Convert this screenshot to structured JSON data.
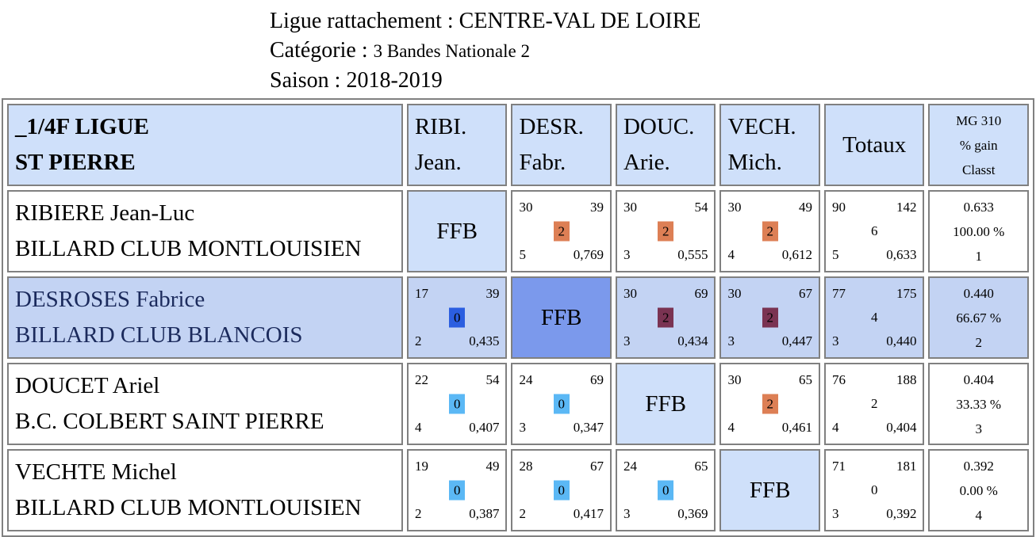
{
  "header": {
    "ligue_label": "Ligue rattachement : ",
    "ligue_value": "CENTRE-VAL DE LOIRE",
    "categorie_label": "Catégorie : ",
    "categorie_value": "3 Bandes Nationale 2",
    "saison_label": "Saison : ",
    "saison_value": "2018-2019"
  },
  "table": {
    "title_line1": "_1/4F LIGUE",
    "title_line2": "ST PIERRE",
    "columns": [
      {
        "line1": "RIBI.",
        "line2": "Jean."
      },
      {
        "line1": "DESR.",
        "line2": "Fabr."
      },
      {
        "line1": "DOUC.",
        "line2": "Arie."
      },
      {
        "line1": "VECH.",
        "line2": "Mich."
      }
    ],
    "totaux_label": "Totaux",
    "mg_label_line1": "MG 310",
    "mg_label_line2": "% gain",
    "mg_label_line3": "Classt",
    "ffb_label": "FFB",
    "colors": {
      "win": "#dd7f55",
      "win_highlight": "#7a3352",
      "loss": "#5bb8f5",
      "loss_highlight": "#2b5ee0",
      "header_bg": "#cfe0fa",
      "highlight_row_bg": "#c3d3f3",
      "highlight_ffb_bg": "#7b99ec"
    },
    "rows": [
      {
        "name": "RIBIERE Jean-Luc",
        "club": "BILLARD CLUB MONTLOUISIEN",
        "highlight": false,
        "cells": [
          null,
          {
            "pts": "30",
            "max": "39",
            "res": "2",
            "rep": "5",
            "moy": "0,769"
          },
          {
            "pts": "30",
            "max": "54",
            "res": "2",
            "rep": "3",
            "moy": "0,555"
          },
          {
            "pts": "30",
            "max": "49",
            "res": "2",
            "rep": "4",
            "moy": "0,612"
          }
        ],
        "totals": {
          "pts": "90",
          "max": "142",
          "res": "6",
          "rep": "5",
          "moy": "0,633"
        },
        "mg": {
          "mg": "0.633",
          "pct": "100.00 %",
          "rank": "1"
        }
      },
      {
        "name": "DESROSES Fabrice",
        "club": "BILLARD CLUB BLANCOIS",
        "highlight": true,
        "cells": [
          {
            "pts": "17",
            "max": "39",
            "res": "0",
            "rep": "2",
            "moy": "0,435"
          },
          null,
          {
            "pts": "30",
            "max": "69",
            "res": "2",
            "rep": "3",
            "moy": "0,434"
          },
          {
            "pts": "30",
            "max": "67",
            "res": "2",
            "rep": "3",
            "moy": "0,447"
          }
        ],
        "totals": {
          "pts": "77",
          "max": "175",
          "res": "4",
          "rep": "3",
          "moy": "0,440"
        },
        "mg": {
          "mg": "0.440",
          "pct": "66.67 %",
          "rank": "2"
        }
      },
      {
        "name": "DOUCET Ariel",
        "club": "B.C. COLBERT SAINT PIERRE",
        "highlight": false,
        "cells": [
          {
            "pts": "22",
            "max": "54",
            "res": "0",
            "rep": "4",
            "moy": "0,407"
          },
          {
            "pts": "24",
            "max": "69",
            "res": "0",
            "rep": "3",
            "moy": "0,347"
          },
          null,
          {
            "pts": "30",
            "max": "65",
            "res": "2",
            "rep": "4",
            "moy": "0,461"
          }
        ],
        "totals": {
          "pts": "76",
          "max": "188",
          "res": "2",
          "rep": "4",
          "moy": "0,404"
        },
        "mg": {
          "mg": "0.404",
          "pct": "33.33 %",
          "rank": "3"
        }
      },
      {
        "name": "VECHTE Michel",
        "club": "BILLARD CLUB MONTLOUISIEN",
        "highlight": false,
        "cells": [
          {
            "pts": "19",
            "max": "49",
            "res": "0",
            "rep": "2",
            "moy": "0,387"
          },
          {
            "pts": "28",
            "max": "67",
            "res": "0",
            "rep": "2",
            "moy": "0,417"
          },
          {
            "pts": "24",
            "max": "65",
            "res": "0",
            "rep": "3",
            "moy": "0,369"
          },
          null
        ],
        "totals": {
          "pts": "71",
          "max": "181",
          "res": "0",
          "rep": "3",
          "moy": "0,392"
        },
        "mg": {
          "mg": "0.392",
          "pct": "0.00 %",
          "rank": "4"
        }
      }
    ]
  }
}
